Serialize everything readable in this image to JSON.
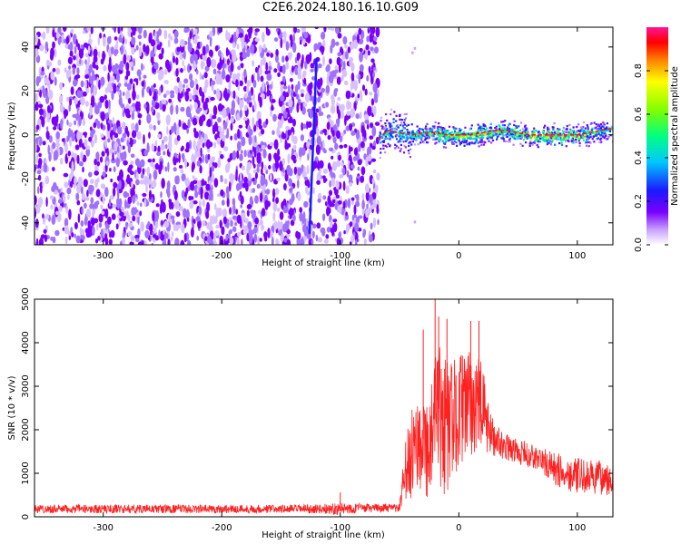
{
  "figure": {
    "title": "C2E6.2024.180.16.10.G09"
  },
  "chart_data": [
    {
      "type": "heatmap",
      "title": "C2E6.2024.180.16.10.G09",
      "xlabel": "Height of straight line (km)",
      "ylabel": "Frequency (Hz)",
      "xlim": [
        -358,
        130
      ],
      "ylim": [
        -50,
        49
      ],
      "x_ticks": [
        -300,
        -200,
        -100,
        0,
        100
      ],
      "x_tick_labels": [
        "-300",
        "-200",
        "-100",
        "0",
        "100"
      ],
      "y_ticks": [
        -40,
        -20,
        0,
        20,
        40
      ],
      "y_tick_labels": [
        "-40",
        "-20",
        "0",
        "20",
        "40"
      ],
      "grid": false,
      "colorbar": {
        "label": "Normalized spectral amplitude",
        "range": [
          0.0,
          1.0
        ],
        "ticks": [
          0.0,
          0.2,
          0.4,
          0.6,
          0.8
        ],
        "tick_labels": [
          "0.0",
          "0.2",
          "0.4",
          "0.6",
          "0.8"
        ],
        "colormap": [
          "#ffffff",
          "#c8a0ff",
          "#7a00ff",
          "#1a1aff",
          "#00c8ff",
          "#00ff80",
          "#80ff00",
          "#ffff00",
          "#ff8000",
          "#ff0000",
          "#ff1493"
        ]
      },
      "noise_region": {
        "x_range": [
          -358,
          -68
        ],
        "freq_range": [
          -50,
          49
        ],
        "level": 0.12
      },
      "vertical_streak": {
        "x_start": -120,
        "x_end": -126,
        "freq_range": [
          -45,
          35
        ],
        "level": 0.25
      },
      "signal_band": {
        "x": [
          -68,
          -60,
          -50,
          -40,
          -30,
          -20,
          -10,
          0,
          10,
          20,
          30,
          40,
          50,
          60,
          70,
          80,
          90,
          100,
          110,
          120,
          130
        ],
        "center_freq": [
          -2,
          2,
          1,
          0,
          1,
          1,
          0,
          0,
          0,
          1,
          2,
          2,
          1,
          0,
          0,
          0,
          0,
          0,
          1,
          2,
          3
        ],
        "amplitude": [
          0.45,
          0.55,
          0.55,
          0.6,
          0.7,
          0.8,
          0.85,
          0.85,
          0.8,
          0.85,
          0.75,
          0.8,
          0.85,
          0.9,
          0.95,
          0.95,
          0.9,
          0.85,
          0.75,
          0.6,
          0.55
        ]
      },
      "stray_points": [
        {
          "x": -40,
          "freq": 38
        },
        {
          "x": -38,
          "freq": 40
        },
        {
          "x": -38,
          "freq": -39
        }
      ]
    },
    {
      "type": "line",
      "xlabel": "Height of straight line (km)",
      "ylabel": "SNR (10 * v/v)",
      "xlim": [
        -358,
        130
      ],
      "ylim": [
        0,
        5000
      ],
      "x_ticks": [
        -300,
        -200,
        -100,
        0,
        100
      ],
      "x_tick_labels": [
        "-300",
        "-200",
        "-100",
        "0",
        "100"
      ],
      "y_ticks": [
        0,
        1000,
        2000,
        3000,
        4000,
        5000
      ],
      "y_tick_labels": [
        "0",
        "1000",
        "2000",
        "3000",
        "4000",
        "5000"
      ],
      "grid": false,
      "series_color": "#ff2020",
      "series": [
        {
          "x": [
            -358,
            -320,
            -280,
            -240,
            -200,
            -160,
            -120,
            -100,
            -80,
            -50,
            -45,
            -40,
            -35,
            -30,
            -25,
            -20,
            -15,
            -10,
            -5,
            0,
            5,
            10,
            15,
            20,
            25,
            30,
            40,
            50,
            60,
            70,
            80,
            90,
            100,
            110,
            120,
            130
          ],
          "y_mean": [
            180,
            180,
            180,
            180,
            180,
            180,
            180,
            190,
            200,
            200,
            1000,
            1400,
            1800,
            1800,
            1500,
            2200,
            2200,
            2100,
            2200,
            2500,
            2500,
            2600,
            2600,
            2500,
            2000,
            1800,
            1600,
            1500,
            1400,
            1300,
            1100,
            1000,
            950,
            900,
            900,
            900
          ],
          "y_spread": [
            100,
            100,
            100,
            100,
            100,
            100,
            100,
            150,
            100,
            100,
            800,
            1000,
            1200,
            1200,
            1200,
            1600,
            1800,
            1600,
            1400,
            1300,
            1300,
            1200,
            1200,
            1000,
            600,
            400,
            300,
            300,
            300,
            300,
            400,
            400,
            400,
            400,
            400,
            400
          ]
        }
      ],
      "peaks": [
        {
          "x": -20,
          "y": 5000
        },
        {
          "x": -17,
          "y": 4600
        },
        {
          "x": -10,
          "y": 4550
        },
        {
          "x": 10,
          "y": 4500
        },
        {
          "x": 17,
          "y": 4500
        },
        {
          "x": -30,
          "y": 4300
        },
        {
          "x": -100,
          "y": 560
        }
      ]
    }
  ]
}
